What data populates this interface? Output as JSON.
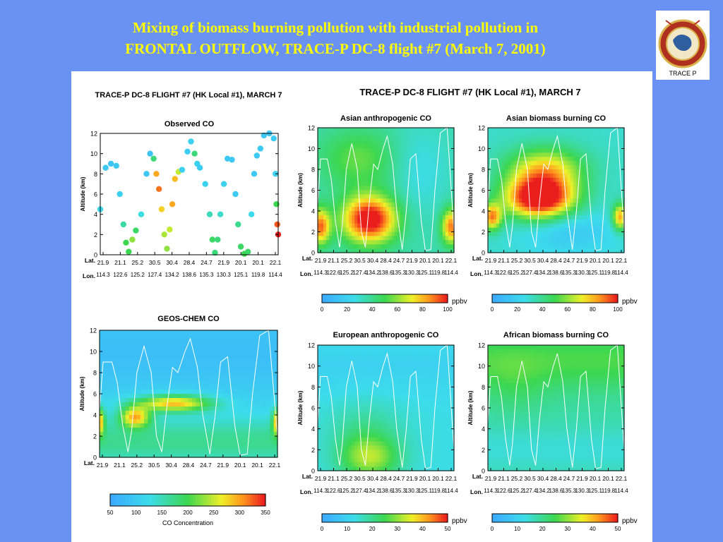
{
  "slide": {
    "title_line1": "Mixing of biomass burning pollution with industrial pollution in",
    "title_line2": "FRONTAL OUTFLOW, TRACE-P DC-8 flight #7 (March 7, 2001)"
  },
  "logo": {
    "label": "TRACE P"
  },
  "colors": {
    "background": "#6a91f4",
    "title": "#ffff00"
  },
  "left_figure": {
    "title": "TRACE-P DC-8 FLIGHT #7 (HK Local #1), MARCH 7"
  },
  "right_figure": {
    "title": "TRACE-P DC-8 FLIGHT #7 (HK Local #1), MARCH 7"
  },
  "chart_data": [
    {
      "id": "observed-co",
      "type": "scatter",
      "title": "Observed CO",
      "ylabel": "Altitude (km)",
      "ylim": [
        0,
        12
      ],
      "yticks": [
        0,
        2,
        4,
        6,
        8,
        10,
        12
      ],
      "lat_row_label": "Lat.",
      "lon_row_label": "Lon.",
      "lat_labels": [
        "21.9",
        "21.1",
        "25.2",
        "30.5",
        "30.4",
        "28.4",
        "24.7",
        "21.9",
        "20.1",
        "20.1",
        "22.1"
      ],
      "lon_labels": [
        "114.3",
        "122.6",
        "125.2",
        "127.4",
        "134.2",
        "138.6",
        "135.3",
        "130.3",
        "125.1",
        "119.8",
        "114.4"
      ],
      "color_scale": [
        50,
        350
      ],
      "points": [
        {
          "t": 0,
          "alt": 4.5,
          "co": 120
        },
        {
          "t": 0.3,
          "alt": 8.6,
          "co": 95
        },
        {
          "t": 0.6,
          "alt": 9.0,
          "co": 90
        },
        {
          "t": 0.9,
          "alt": 8.8,
          "co": 95
        },
        {
          "t": 1.1,
          "alt": 6.0,
          "co": 110
        },
        {
          "t": 1.3,
          "alt": 3.0,
          "co": 160
        },
        {
          "t": 1.45,
          "alt": 1.2,
          "co": 200
        },
        {
          "t": 1.6,
          "alt": 0.3,
          "co": 200
        },
        {
          "t": 1.8,
          "alt": 1.5,
          "co": 230
        },
        {
          "t": 2.0,
          "alt": 2.4,
          "co": 190
        },
        {
          "t": 2.3,
          "alt": 4.0,
          "co": 130
        },
        {
          "t": 2.6,
          "alt": 8.0,
          "co": 95
        },
        {
          "t": 2.8,
          "alt": 10.0,
          "co": 90
        },
        {
          "t": 3.0,
          "alt": 9.5,
          "co": 180
        },
        {
          "t": 3.15,
          "alt": 8.0,
          "co": 300
        },
        {
          "t": 3.3,
          "alt": 6.5,
          "co": 320
        },
        {
          "t": 3.45,
          "alt": 4.5,
          "co": 280
        },
        {
          "t": 3.6,
          "alt": 2.0,
          "co": 240
        },
        {
          "t": 3.75,
          "alt": 0.6,
          "co": 230
        },
        {
          "t": 3.9,
          "alt": 2.5,
          "co": 250
        },
        {
          "t": 4.05,
          "alt": 5.0,
          "co": 300
        },
        {
          "t": 4.2,
          "alt": 7.5,
          "co": 290
        },
        {
          "t": 4.4,
          "alt": 8.2,
          "co": 250
        },
        {
          "t": 4.6,
          "alt": 8.4,
          "co": 110
        },
        {
          "t": 4.9,
          "alt": 10.2,
          "co": 100
        },
        {
          "t": 5.1,
          "alt": 11.2,
          "co": 110
        },
        {
          "t": 5.3,
          "alt": 10.0,
          "co": 180
        },
        {
          "t": 5.45,
          "alt": 9.0,
          "co": 110
        },
        {
          "t": 5.6,
          "alt": 8.6,
          "co": 100
        },
        {
          "t": 5.9,
          "alt": 7.0,
          "co": 110
        },
        {
          "t": 6.15,
          "alt": 4.0,
          "co": 150
        },
        {
          "t": 6.3,
          "alt": 1.5,
          "co": 190
        },
        {
          "t": 6.45,
          "alt": 0.2,
          "co": 180
        },
        {
          "t": 6.6,
          "alt": 1.5,
          "co": 180
        },
        {
          "t": 6.75,
          "alt": 4.0,
          "co": 140
        },
        {
          "t": 6.95,
          "alt": 7.0,
          "co": 110
        },
        {
          "t": 7.15,
          "alt": 9.5,
          "co": 95
        },
        {
          "t": 7.4,
          "alt": 9.4,
          "co": 95
        },
        {
          "t": 7.6,
          "alt": 6.0,
          "co": 100
        },
        {
          "t": 7.75,
          "alt": 3.0,
          "co": 170
        },
        {
          "t": 7.9,
          "alt": 0.8,
          "co": 190
        },
        {
          "t": 8.1,
          "alt": 0.1,
          "co": 200
        },
        {
          "t": 8.3,
          "alt": 0.3,
          "co": 190
        },
        {
          "t": 8.5,
          "alt": 4.0,
          "co": 120
        },
        {
          "t": 8.65,
          "alt": 8.0,
          "co": 95
        },
        {
          "t": 8.8,
          "alt": 9.8,
          "co": 95
        },
        {
          "t": 9.0,
          "alt": 10.5,
          "co": 95
        },
        {
          "t": 9.2,
          "alt": 11.8,
          "co": 95
        },
        {
          "t": 9.5,
          "alt": 12.0,
          "co": 95
        },
        {
          "t": 9.75,
          "alt": 11.5,
          "co": 100
        },
        {
          "t": 9.85,
          "alt": 8.0,
          "co": 110
        },
        {
          "t": 9.9,
          "alt": 5.0,
          "co": 200
        },
        {
          "t": 9.95,
          "alt": 3.0,
          "co": 330
        },
        {
          "t": 10.0,
          "alt": 2.0,
          "co": 350
        }
      ]
    },
    {
      "id": "geos-chem-co",
      "type": "heatmap",
      "title": "GEOS-CHEM CO",
      "ylabel": "Altitude (km)",
      "ylim": [
        0,
        12
      ],
      "yticks": [
        0,
        2,
        4,
        6,
        8,
        10,
        12
      ],
      "lat_row_label": "Lat.",
      "lat_labels": [
        "21.9",
        "21.1",
        "25.2",
        "30.5",
        "30.4",
        "28.4",
        "24.7",
        "21.9",
        "20.1",
        "20.1",
        "22.1"
      ],
      "color_scale": [
        50,
        350
      ],
      "colorbar_ticks": [
        50,
        100,
        150,
        200,
        250,
        300,
        350
      ],
      "colorbar_label": "CO Concentration"
    },
    {
      "id": "asian-anthropogenic-co",
      "type": "heatmap",
      "title": "Asian anthropogenic CO",
      "ylabel": "Altitude (km)",
      "ylim": [
        0,
        12
      ],
      "yticks": [
        0,
        2,
        4,
        6,
        8,
        10,
        12
      ],
      "lat_row_label": "Lat.",
      "lon_row_label": "Lon.",
      "lat_labels": [
        "21.9",
        "21.1",
        "25.2",
        "30.5",
        "30.4",
        "28.4",
        "24.7",
        "21.9",
        "20.1",
        "20.1",
        "22.1"
      ],
      "lon_labels": [
        "114.3",
        "122.6",
        "125.2",
        "127.4",
        "134.2",
        "138.6",
        "135.3",
        "130.3",
        "125.1",
        "119.8",
        "114.4"
      ],
      "color_scale": [
        0,
        100
      ],
      "colorbar_ticks": [
        0,
        20,
        40,
        60,
        80,
        100
      ],
      "colorbar_unit": "ppbv"
    },
    {
      "id": "asian-biomass-burning-co",
      "type": "heatmap",
      "title": "Asian biomass burning CO",
      "ylabel": "Altitude (km)",
      "ylim": [
        0,
        12
      ],
      "yticks": [
        0,
        2,
        4,
        6,
        8,
        10,
        12
      ],
      "lat_row_label": "Lat.",
      "lon_row_label": "Lon.",
      "lat_labels": [
        "21.9",
        "21.1",
        "25.2",
        "30.5",
        "30.4",
        "28.4",
        "24.7",
        "21.9",
        "20.1",
        "20.1",
        "22.1"
      ],
      "lon_labels": [
        "114.3",
        "122.6",
        "125.2",
        "127.4",
        "134.2",
        "138.6",
        "135.3",
        "130.3",
        "125.1",
        "119.8",
        "114.4"
      ],
      "color_scale": [
        0,
        100
      ],
      "colorbar_ticks": [
        0,
        20,
        40,
        60,
        80,
        100
      ],
      "colorbar_unit": "ppbv"
    },
    {
      "id": "european-anthropogenic-co",
      "type": "heatmap",
      "title": "European anthropogenic CO",
      "ylabel": "Altitude (km)",
      "ylim": [
        0,
        12
      ],
      "yticks": [
        0,
        2,
        4,
        6,
        8,
        10,
        12
      ],
      "lat_row_label": "Lat.",
      "lon_row_label": "Lon.",
      "lat_labels": [
        "21.9",
        "21.1",
        "25.2",
        "30.5",
        "30.4",
        "28.4",
        "24.7",
        "21.9",
        "20.1",
        "20.1",
        "22.1"
      ],
      "lon_labels": [
        "114.3",
        "122.6",
        "125.2",
        "127.4",
        "134.2",
        "138.6",
        "135.3",
        "130.3",
        "125.1",
        "119.8",
        "114.4"
      ],
      "color_scale": [
        0,
        50
      ],
      "colorbar_ticks": [
        0,
        10,
        20,
        30,
        40,
        50
      ],
      "colorbar_unit": "ppbv"
    },
    {
      "id": "african-biomass-burning-co",
      "type": "heatmap",
      "title": "African biomass burning CO",
      "ylabel": "Altitude (km)",
      "ylim": [
        0,
        12
      ],
      "yticks": [
        0,
        2,
        4,
        6,
        8,
        10,
        12
      ],
      "lat_row_label": "Lat.",
      "lon_row_label": "Lon.",
      "lat_labels": [
        "21.9",
        "21.1",
        "25.2",
        "30.5",
        "30.4",
        "28.4",
        "24.7",
        "21.9",
        "20.1",
        "20.1",
        "22.1"
      ],
      "lon_labels": [
        "114.3",
        "122.6",
        "125.2",
        "127.4",
        "134.2",
        "138.6",
        "135.3",
        "130.3",
        "125.1",
        "119.8",
        "114.4"
      ],
      "color_scale": [
        0,
        50
      ],
      "colorbar_ticks": [
        0,
        10,
        20,
        30,
        40,
        50
      ],
      "colorbar_unit": "ppbv"
    }
  ]
}
